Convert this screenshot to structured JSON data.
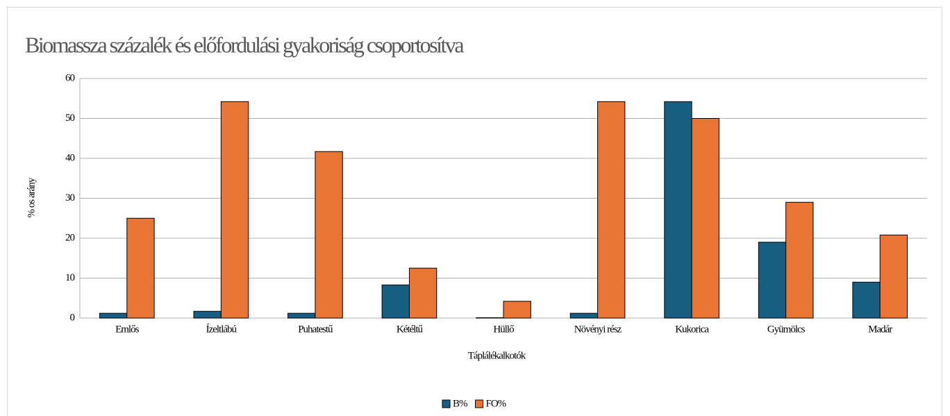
{
  "chart_data": {
    "type": "bar",
    "title": "Biomassza százalék és előfordulási gyakoriság csoportosítva",
    "x_label": "Táplálékalkotók",
    "y_label": "% os arány",
    "categories": [
      "Emlős",
      "Ízeltlábú",
      "Puhatestű",
      "Kétéltű",
      "Hüllő",
      "Növényi rész",
      "Kukorica",
      "Gyümölcs",
      "Madár"
    ],
    "series": [
      {
        "name": "B%",
        "color": "#175f82",
        "values": [
          1.2,
          1.7,
          1.2,
          8.3,
          0.1,
          1.2,
          54.2,
          19,
          9
        ]
      },
      {
        "name": "FO%",
        "color": "#e97434",
        "values": [
          25,
          54.2,
          41.7,
          12.5,
          4.2,
          54.2,
          50,
          29,
          20.8
        ]
      }
    ],
    "ylim": [
      0,
      60
    ],
    "yticks": [
      0,
      10,
      20,
      30,
      40,
      50,
      60
    ],
    "grid": true,
    "legend": "bottom"
  }
}
